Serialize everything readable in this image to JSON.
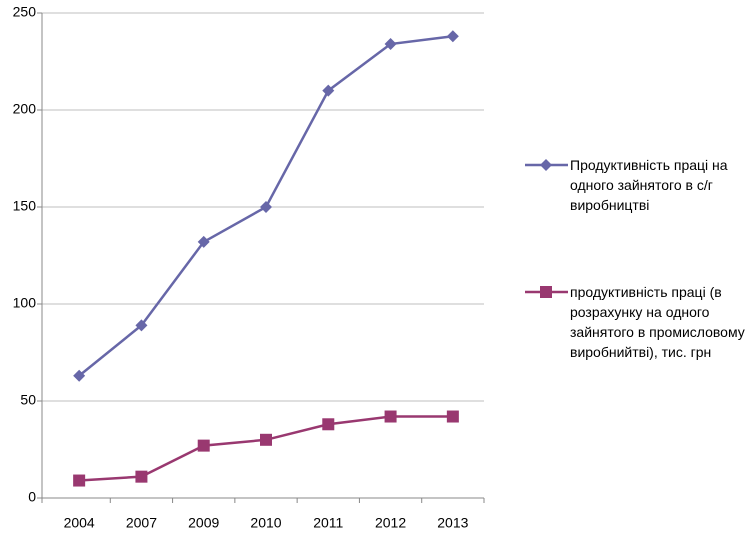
{
  "chart_data": {
    "type": "line",
    "categories": [
      "2004",
      "2007",
      "2009",
      "2010",
      "2011",
      "2012",
      "2013"
    ],
    "series": [
      {
        "name": "Продуктивність праці на одного зайнятого в с/г виробництві",
        "color": "#6767a8",
        "marker": "diamond",
        "values": [
          63,
          89,
          132,
          150,
          210,
          234,
          238
        ]
      },
      {
        "name": "продуктивність праці (в розрахунку на одного зайнятого в промисловому виробнийтві), тис. грн",
        "color": "#993870",
        "marker": "square",
        "values": [
          9,
          11,
          27,
          30,
          38,
          42,
          42
        ]
      }
    ],
    "ylim": [
      0,
      250
    ],
    "yticks": [
      0,
      50,
      100,
      150,
      200,
      250
    ],
    "grid": true
  }
}
